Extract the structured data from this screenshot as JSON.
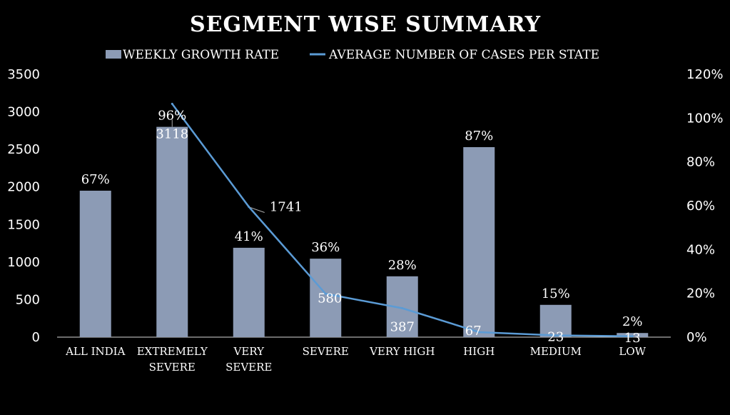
{
  "chart_data": {
    "type": "bar",
    "title": "SEGMENT WISE SUMMARY",
    "categories": [
      [
        "ALL INDIA"
      ],
      [
        "EXTREMELY",
        "SEVERE"
      ],
      [
        "VERY",
        "SEVERE"
      ],
      [
        "SEVERE"
      ],
      [
        "VERY HIGH"
      ],
      [
        "HIGH"
      ],
      [
        "MEDIUM"
      ],
      [
        "LOW"
      ]
    ],
    "series": [
      {
        "name": "WEEKLY GROWTH RATE",
        "type": "bar",
        "axis": "left",
        "values": [
          1950,
          2800,
          1190,
          1045,
          810,
          2530,
          430,
          55
        ],
        "labels": [
          "67%",
          "96%",
          "41%",
          "36%",
          "28%",
          "87%",
          "15%",
          "2%"
        ],
        "color": "#8c9bb5"
      },
      {
        "name": "AVERAGE NUMBER OF CASES PER STATE",
        "type": "line",
        "axis": "right",
        "values": [
          null,
          1.065,
          0.595,
          0.198,
          0.132,
          0.023,
          0.008,
          0.004
        ],
        "labels": [
          null,
          "3118",
          "1741",
          "580",
          "387",
          "67",
          "23",
          "13"
        ],
        "color": "#5b9bd5"
      }
    ],
    "y_left": {
      "min": 0,
      "max": 3500,
      "step": 500,
      "ticks": [
        "0",
        "500",
        "1000",
        "1500",
        "2000",
        "2500",
        "3000",
        "3500"
      ]
    },
    "y_right": {
      "min": 0,
      "max": 1.2,
      "step": 0.2,
      "ticks": [
        "0%",
        "20%",
        "40%",
        "60%",
        "80%",
        "100%",
        "120%"
      ]
    },
    "legend": "top-center",
    "grid": false
  }
}
